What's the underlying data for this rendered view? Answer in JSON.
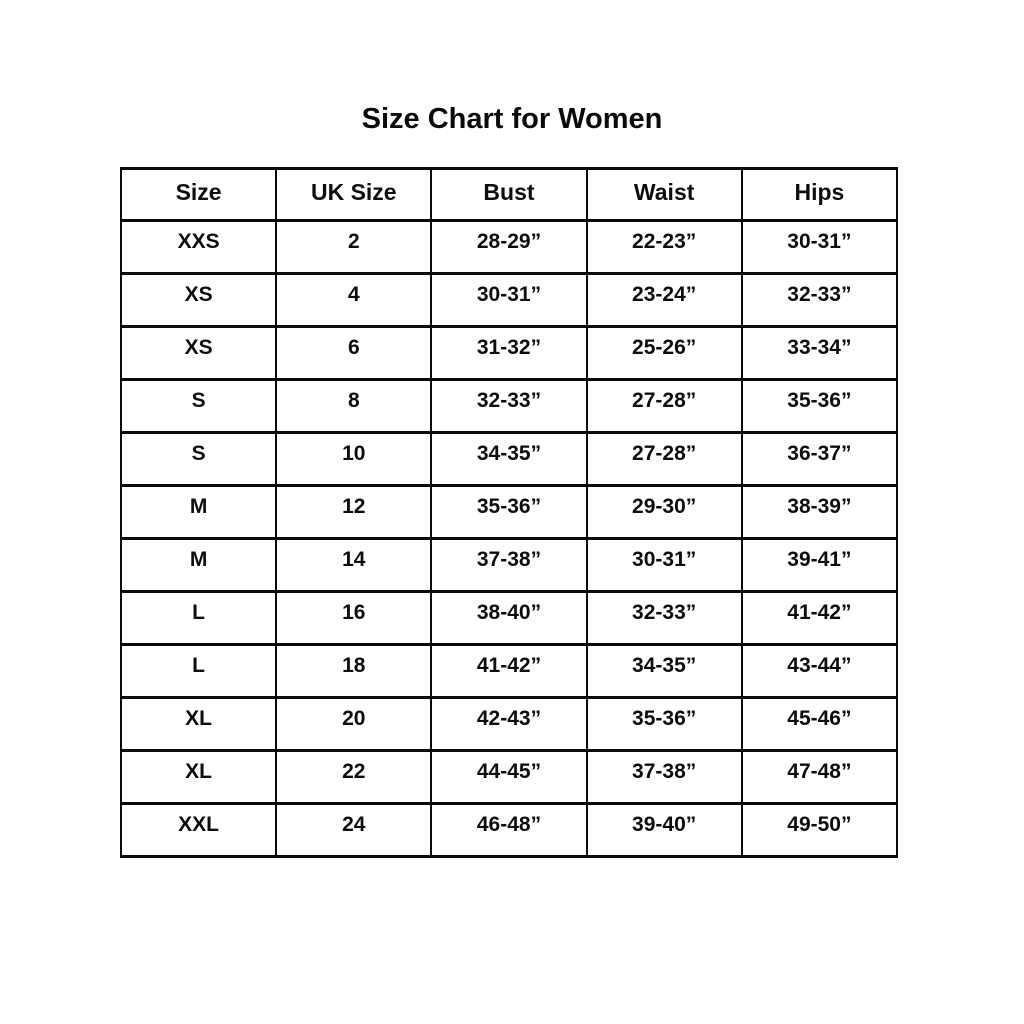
{
  "title": "Size Chart for Women",
  "chart_data": {
    "type": "table",
    "title": "Size Chart for Women",
    "columns": [
      "Size",
      "UK Size",
      "Bust",
      "Waist",
      "Hips"
    ],
    "rows": [
      [
        "XXS",
        "2",
        "28-29”",
        "22-23”",
        "30-31”"
      ],
      [
        "XS",
        "4",
        "30-31”",
        "23-24”",
        "32-33”"
      ],
      [
        "XS",
        "6",
        "31-32”",
        "25-26”",
        "33-34”"
      ],
      [
        "S",
        "8",
        "32-33”",
        "27-28”",
        "35-36”"
      ],
      [
        "S",
        "10",
        "34-35”",
        "27-28”",
        "36-37”"
      ],
      [
        "M",
        "12",
        "35-36”",
        "29-30”",
        "38-39”"
      ],
      [
        "M",
        "14",
        "37-38”",
        "30-31”",
        "39-41”"
      ],
      [
        "L",
        "16",
        "38-40”",
        "32-33”",
        "41-42”"
      ],
      [
        "L",
        "18",
        "41-42”",
        "34-35”",
        "43-44”"
      ],
      [
        "XL",
        "20",
        "42-43”",
        "35-36”",
        "45-46”"
      ],
      [
        "XL",
        "22",
        "44-45”",
        "37-38”",
        "47-48”"
      ],
      [
        "XXL",
        "24",
        "46-48”",
        "39-40”",
        "49-50”"
      ]
    ]
  }
}
